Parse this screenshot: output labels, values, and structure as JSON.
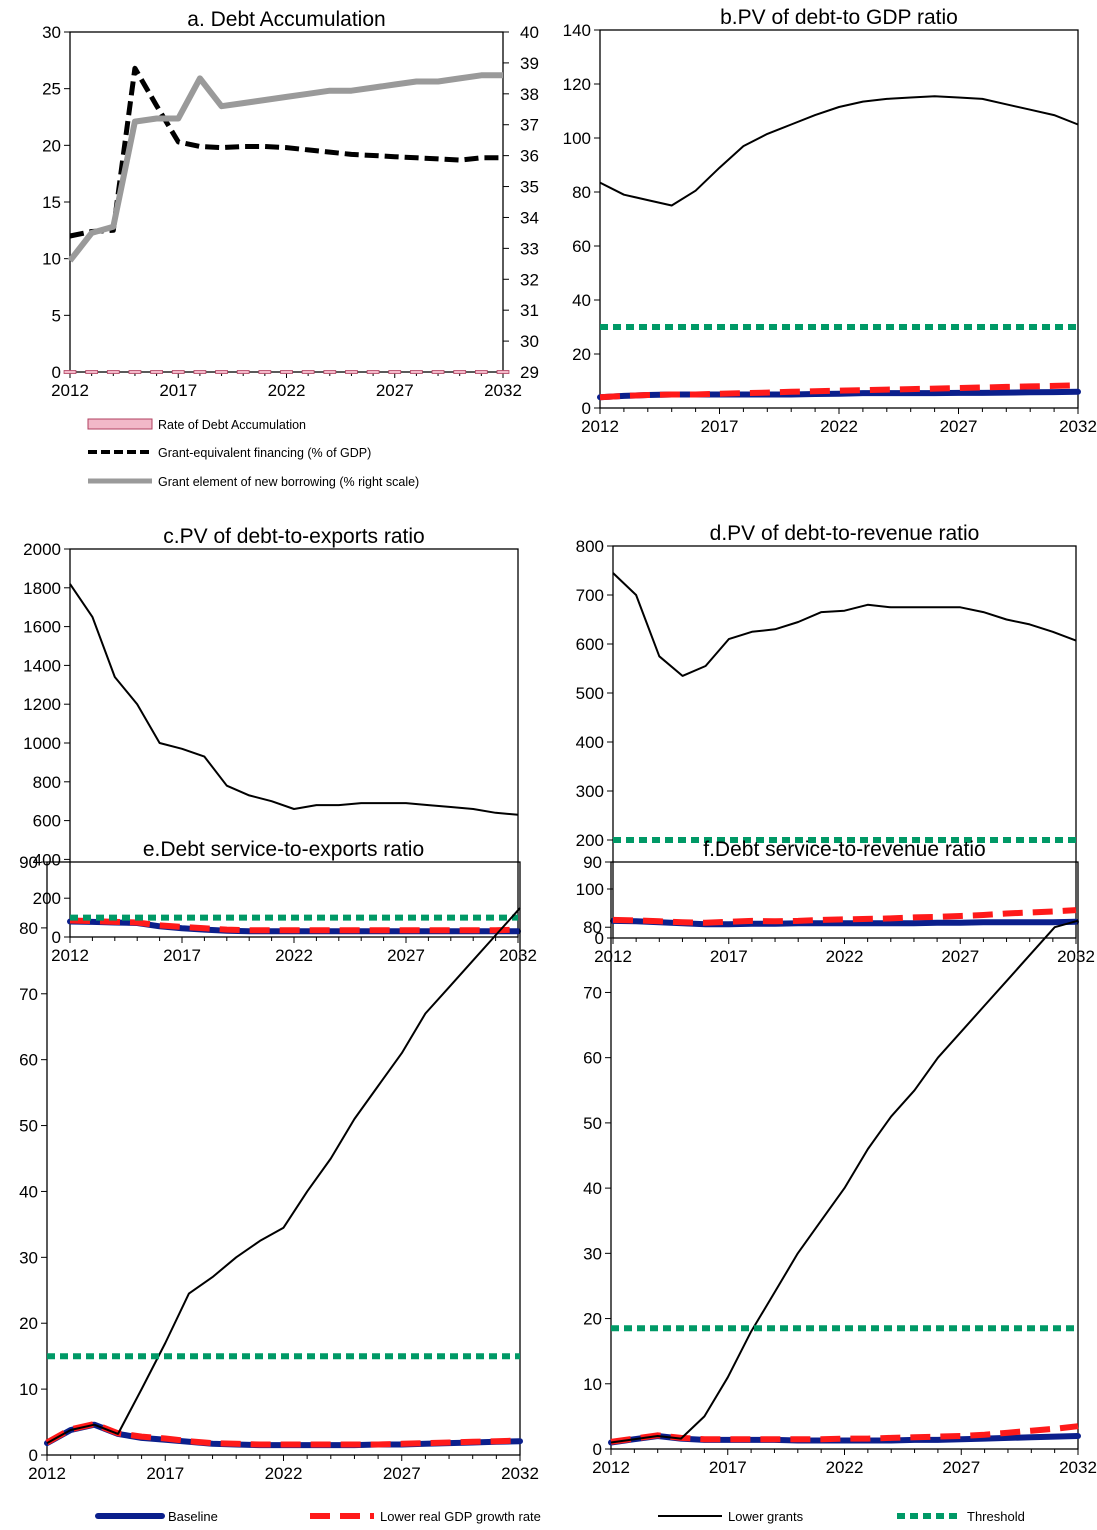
{
  "colors": {
    "baseline": "#0b1f8c",
    "lower_gdp": "#ff1a1a",
    "lower_grants": "#000000",
    "threshold": "#009966",
    "rate_fill": "#f2b8c8",
    "rate_edge": "#b04060",
    "grant_equiv": "#000000",
    "grant_element": "#9a9a9a"
  },
  "legend_a": {
    "rate": "Rate of Debt Accumulation",
    "grant_equiv": "Grant-equivalent financing  (% of GDP)",
    "grant_element": "Grant element of new borrowing (% right scale)"
  },
  "legend_bottom": {
    "baseline": "Baseline",
    "lower_gdp": "Lower real GDP growth rate",
    "lower_grants": "Lower grants",
    "threshold": "Threshold"
  },
  "chart_data": [
    {
      "id": "a",
      "type": "line",
      "title": "a. Debt Accumulation",
      "x": [
        2012,
        2013,
        2014,
        2015,
        2016,
        2017,
        2018,
        2019,
        2020,
        2021,
        2022,
        2023,
        2024,
        2025,
        2026,
        2027,
        2028,
        2029,
        2030,
        2031,
        2032
      ],
      "xticks": [
        "2012",
        "2017",
        "2022",
        "2027",
        "2032"
      ],
      "ylim": [
        0,
        30
      ],
      "yticks": [
        "0",
        "5",
        "10",
        "15",
        "20",
        "25",
        "30"
      ],
      "y2lim": [
        29,
        40
      ],
      "y2ticks": [
        "29",
        "30",
        "31",
        "32",
        "33",
        "34",
        "35",
        "36",
        "37",
        "38",
        "39",
        "40"
      ],
      "series": [
        {
          "name": "Rate of Debt Accumulation",
          "axis": "left",
          "style": "bar",
          "values": [
            0,
            0,
            0,
            0,
            0,
            0,
            0,
            0,
            0,
            0,
            0,
            0,
            0,
            0,
            0,
            0,
            0,
            0,
            0,
            0,
            0
          ]
        },
        {
          "name": "Grant-equivalent financing  (% of GDP)",
          "axis": "left",
          "style": "dashed",
          "values": [
            12.0,
            12.4,
            12.5,
            26.8,
            23.5,
            20.3,
            19.9,
            19.8,
            19.9,
            19.9,
            19.8,
            19.6,
            19.4,
            19.2,
            19.1,
            19.0,
            18.9,
            18.8,
            18.7,
            18.9,
            18.9
          ]
        },
        {
          "name": "Grant element of new borrowing (% right scale)",
          "axis": "right",
          "style": "solid",
          "values": [
            32.6,
            33.5,
            33.7,
            37.1,
            37.2,
            37.2,
            38.5,
            37.6,
            37.7,
            37.8,
            37.9,
            38.0,
            38.1,
            38.1,
            38.2,
            38.3,
            38.4,
            38.4,
            38.5,
            38.6,
            38.6
          ]
        }
      ]
    },
    {
      "id": "b",
      "type": "line",
      "title": "b.PV of debt-to GDP ratio",
      "x": [
        2012,
        2013,
        2014,
        2015,
        2016,
        2017,
        2018,
        2019,
        2020,
        2021,
        2022,
        2023,
        2024,
        2025,
        2026,
        2027,
        2028,
        2029,
        2030,
        2031,
        2032
      ],
      "xticks": [
        "2012",
        "2017",
        "2022",
        "2027",
        "2032"
      ],
      "ylim": [
        0,
        140
      ],
      "yticks": [
        "0",
        "20",
        "40",
        "60",
        "80",
        "100",
        "120",
        "140"
      ],
      "series": [
        {
          "name": "Baseline",
          "values": [
            4,
            4.5,
            4.8,
            5,
            5,
            5,
            5,
            5,
            5,
            5.2,
            5.3,
            5.5,
            5.5,
            5.5,
            5.5,
            5.6,
            5.6,
            5.7,
            5.8,
            5.9,
            6
          ]
        },
        {
          "name": "Lower real GDP growth rate",
          "values": [
            4,
            4.5,
            4.8,
            5,
            5,
            5.3,
            5.5,
            5.7,
            6,
            6.2,
            6.4,
            6.6,
            6.8,
            7,
            7.2,
            7.4,
            7.6,
            7.8,
            8,
            8.2,
            8.4
          ]
        },
        {
          "name": "Lower grants",
          "values": [
            83.5,
            79,
            77,
            75,
            80.5,
            89,
            97,
            101.5,
            105,
            108.5,
            111.5,
            113.5,
            114.5,
            115,
            115.5,
            115,
            114.5,
            112.5,
            110.5,
            108.5,
            105
          ]
        },
        {
          "name": "Threshold",
          "values": [
            30,
            30,
            30,
            30,
            30,
            30,
            30,
            30,
            30,
            30,
            30,
            30,
            30,
            30,
            30,
            30,
            30,
            30,
            30,
            30,
            30
          ]
        }
      ]
    },
    {
      "id": "c",
      "type": "line",
      "title": "c.PV of debt-to-exports ratio",
      "x": [
        2012,
        2013,
        2014,
        2015,
        2016,
        2017,
        2018,
        2019,
        2020,
        2021,
        2022,
        2023,
        2024,
        2025,
        2026,
        2027,
        2028,
        2029,
        2030,
        2031,
        2032
      ],
      "xticks": [
        "2012",
        "2017",
        "2022",
        "2027",
        "2032"
      ],
      "ylim": [
        0,
        2000
      ],
      "yticks": [
        "0",
        "200",
        "400",
        "600",
        "800",
        "1000",
        "1200",
        "1400",
        "1600",
        "1800",
        "2000"
      ],
      "series": [
        {
          "name": "Baseline",
          "values": [
            80,
            78,
            75,
            72,
            55,
            45,
            38,
            32,
            30,
            30,
            30,
            30,
            30,
            30,
            30,
            30,
            30,
            30,
            30,
            30,
            30
          ]
        },
        {
          "name": "Lower real GDP growth rate",
          "values": [
            85,
            82,
            78,
            75,
            60,
            52,
            45,
            38,
            35,
            35,
            35,
            35,
            35,
            35,
            35,
            35,
            35,
            35,
            35,
            35,
            38
          ]
        },
        {
          "name": "Lower grants",
          "values": [
            1820,
            1650,
            1340,
            1200,
            1000,
            970,
            930,
            780,
            730,
            700,
            660,
            680,
            680,
            690,
            690,
            690,
            680,
            670,
            660,
            640,
            630
          ]
        },
        {
          "name": "Threshold",
          "values": [
            100,
            100,
            100,
            100,
            100,
            100,
            100,
            100,
            100,
            100,
            100,
            100,
            100,
            100,
            100,
            100,
            100,
            100,
            100,
            100,
            100
          ]
        }
      ]
    },
    {
      "id": "d",
      "type": "line",
      "title": "d.PV of debt-to-revenue ratio",
      "x": [
        2012,
        2013,
        2014,
        2015,
        2016,
        2017,
        2018,
        2019,
        2020,
        2021,
        2022,
        2023,
        2024,
        2025,
        2026,
        2027,
        2028,
        2029,
        2030,
        2031,
        2032
      ],
      "xticks": [
        "2012",
        "2017",
        "2022",
        "2027",
        "2032"
      ],
      "ylim": [
        0,
        800
      ],
      "yticks": [
        "0",
        "100",
        "200",
        "300",
        "400",
        "500",
        "600",
        "700",
        "800"
      ],
      "series": [
        {
          "name": "Baseline",
          "values": [
            35,
            34,
            32,
            30,
            28,
            28,
            29,
            29,
            30,
            30,
            30,
            30,
            30,
            30,
            31,
            31,
            32,
            32,
            32,
            32,
            33
          ]
        },
        {
          "name": "Lower real GDP growth rate",
          "values": [
            37,
            36,
            34,
            32,
            31,
            33,
            35,
            34,
            35,
            37,
            38,
            39,
            40,
            42,
            43,
            45,
            47,
            50,
            52,
            54,
            57
          ]
        },
        {
          "name": "Lower grants",
          "values": [
            745,
            700,
            575,
            535,
            555,
            610,
            625,
            630,
            645,
            665,
            668,
            680,
            675,
            675,
            675,
            675,
            665,
            650,
            640,
            625,
            607
          ]
        },
        {
          "name": "Threshold",
          "values": [
            200,
            200,
            200,
            200,
            200,
            200,
            200,
            200,
            200,
            200,
            200,
            200,
            200,
            200,
            200,
            200,
            200,
            200,
            200,
            200,
            200
          ]
        }
      ]
    },
    {
      "id": "e",
      "type": "line",
      "title": "e.Debt service-to-exports ratio",
      "x": [
        2012,
        2013,
        2014,
        2015,
        2016,
        2017,
        2018,
        2019,
        2020,
        2021,
        2022,
        2023,
        2024,
        2025,
        2026,
        2027,
        2028,
        2029,
        2030,
        2031,
        2032
      ],
      "xticks": [
        "2012",
        "2017",
        "2022",
        "2027",
        "2032"
      ],
      "ylim": [
        0,
        90
      ],
      "yticks": [
        "0",
        "10",
        "20",
        "30",
        "40",
        "50",
        "60",
        "70",
        "80",
        "90"
      ],
      "series": [
        {
          "name": "Baseline",
          "values": [
            1.8,
            3.8,
            4.6,
            3.2,
            2.6,
            2.3,
            2.0,
            1.7,
            1.6,
            1.5,
            1.5,
            1.5,
            1.5,
            1.5,
            1.6,
            1.6,
            1.7,
            1.8,
            1.9,
            2.0,
            2.1
          ]
        },
        {
          "name": "Lower real GDP growth rate",
          "values": [
            1.9,
            3.9,
            4.7,
            3.3,
            2.8,
            2.5,
            2.1,
            1.8,
            1.7,
            1.6,
            1.6,
            1.6,
            1.6,
            1.6,
            1.6,
            1.7,
            1.8,
            1.9,
            2.0,
            2.1,
            2.2
          ]
        },
        {
          "name": "Lower grants",
          "values": [
            1.8,
            3.8,
            4.6,
            3.2,
            10,
            17,
            24.5,
            27,
            30,
            32.5,
            34.5,
            40,
            45,
            51,
            56,
            61,
            67,
            71,
            75,
            79,
            83
          ]
        },
        {
          "name": "Threshold",
          "values": [
            15,
            15,
            15,
            15,
            15,
            15,
            15,
            15,
            15,
            15,
            15,
            15,
            15,
            15,
            15,
            15,
            15,
            15,
            15,
            15,
            15
          ]
        }
      ]
    },
    {
      "id": "f",
      "type": "line",
      "title": "f.Debt service-to-revenue ratio",
      "x": [
        2012,
        2013,
        2014,
        2015,
        2016,
        2017,
        2018,
        2019,
        2020,
        2021,
        2022,
        2023,
        2024,
        2025,
        2026,
        2027,
        2028,
        2029,
        2030,
        2031,
        2032
      ],
      "xticks": [
        "2012",
        "2017",
        "2022",
        "2027",
        "2032"
      ],
      "ylim": [
        0,
        90
      ],
      "yticks": [
        "0",
        "10",
        "20",
        "30",
        "40",
        "50",
        "60",
        "70",
        "80",
        "90"
      ],
      "series": [
        {
          "name": "Baseline",
          "values": [
            1.0,
            1.5,
            2.0,
            1.6,
            1.4,
            1.4,
            1.4,
            1.4,
            1.3,
            1.3,
            1.3,
            1.3,
            1.3,
            1.4,
            1.4,
            1.5,
            1.6,
            1.7,
            1.8,
            1.9,
            2.0
          ]
        },
        {
          "name": "Lower real GDP growth rate",
          "values": [
            1.1,
            1.6,
            2.1,
            1.7,
            1.5,
            1.5,
            1.5,
            1.5,
            1.5,
            1.5,
            1.6,
            1.6,
            1.7,
            1.8,
            1.9,
            2.0,
            2.2,
            2.5,
            2.8,
            3.1,
            3.5
          ]
        },
        {
          "name": "Lower grants",
          "values": [
            1.0,
            1.5,
            2.0,
            1.6,
            5,
            11,
            18,
            24,
            30,
            35,
            40,
            46,
            51,
            55,
            60,
            64,
            68,
            72,
            76,
            80,
            81
          ]
        },
        {
          "name": "Threshold",
          "values": [
            18.5,
            18.5,
            18.5,
            18.5,
            18.5,
            18.5,
            18.5,
            18.5,
            18.5,
            18.5,
            18.5,
            18.5,
            18.5,
            18.5,
            18.5,
            18.5,
            18.5,
            18.5,
            18.5,
            18.5,
            18.5
          ]
        }
      ]
    }
  ]
}
